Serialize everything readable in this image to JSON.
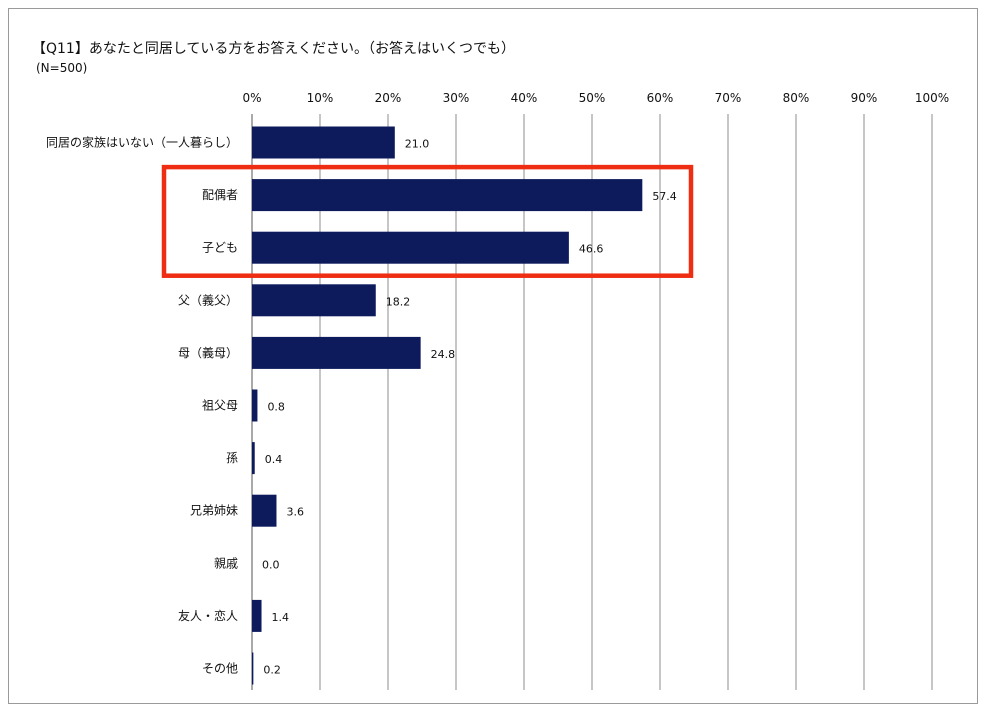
{
  "chart_data": {
    "type": "bar",
    "orientation": "horizontal",
    "title": "【Q11】あなたと同居している方をお答えください。（お答えはいくつでも）",
    "subtitle": "(N=500)",
    "categories": [
      "同居の家族はいない（一人暮らし）",
      "配偶者",
      "子ども",
      "父（義父）",
      "母（義母）",
      "祖父母",
      "孫",
      "兄弟姉妹",
      "親戚",
      "友人・恋人",
      "その他"
    ],
    "values": [
      21.0,
      57.4,
      46.6,
      18.2,
      24.8,
      0.8,
      0.4,
      3.6,
      0.0,
      1.4,
      0.2
    ],
    "value_labels": [
      "21.0",
      "57.4",
      "46.6",
      "18.2",
      "24.8",
      "0.8",
      "0.4",
      "3.6",
      "0.0",
      "1.4",
      "0.2"
    ],
    "xlim": [
      0,
      100
    ],
    "xticks": [
      "0%",
      "10%",
      "20%",
      "30%",
      "40%",
      "50%",
      "60%",
      "70%",
      "80%",
      "90%",
      "100%"
    ],
    "grid": true,
    "bar_color": "#0d1a5c",
    "highlight": {
      "categories": [
        "配偶者",
        "子ども"
      ],
      "color": "#ee2d12"
    }
  }
}
